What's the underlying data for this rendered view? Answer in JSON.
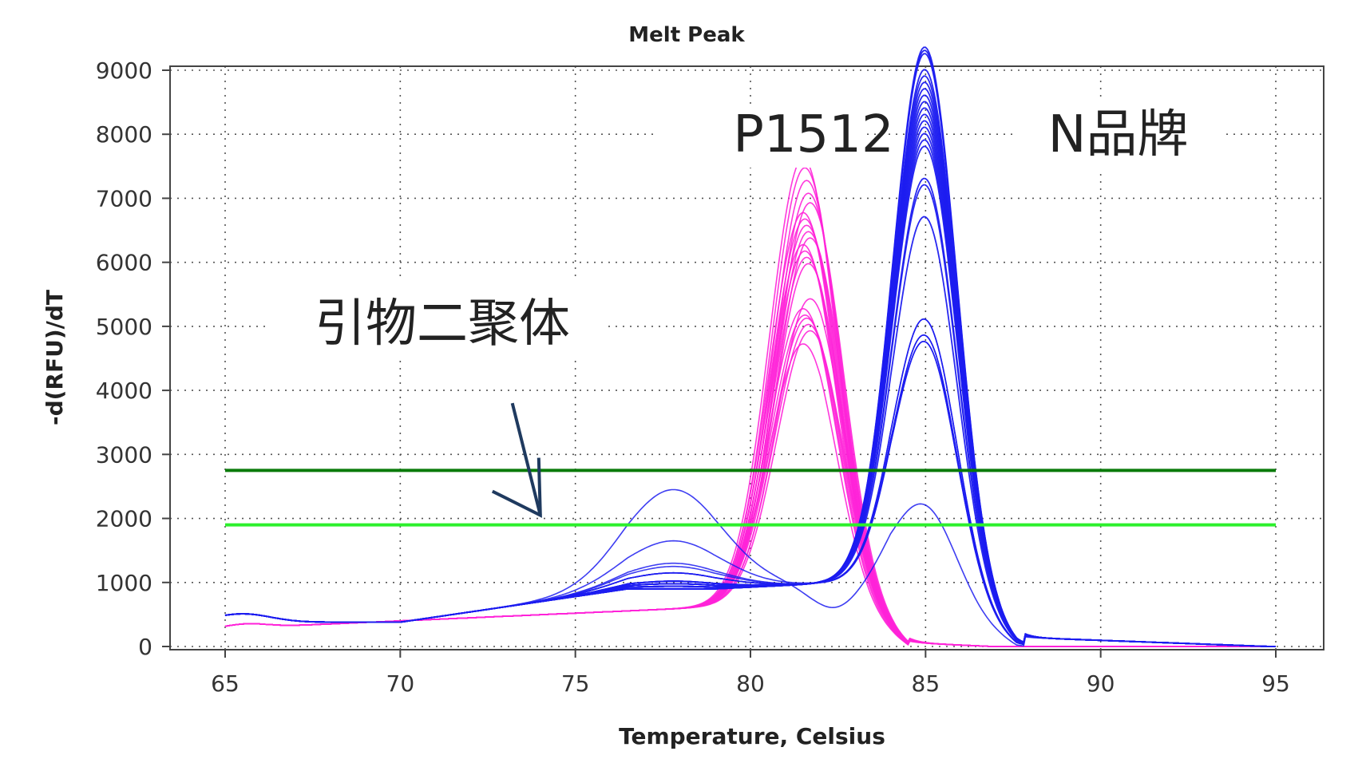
{
  "chart_data": {
    "type": "line",
    "title": "Melt Peak",
    "xlabel": "Temperature, Celsius",
    "ylabel": "-d(RFU)/dT",
    "xlim": [
      65,
      95
    ],
    "ylim": [
      0,
      9000
    ],
    "xticks": [
      65,
      70,
      75,
      80,
      85,
      90,
      95
    ],
    "yticks": [
      0,
      1000,
      2000,
      3000,
      4000,
      5000,
      6000,
      7000,
      8000,
      9000
    ],
    "grid": true,
    "colors": {
      "p1512": "#ff22d8",
      "n_brand": "#1c1cf0",
      "threshold_high": "#0a7a0a",
      "threshold_low": "#2cf02c",
      "arrow": "#1f3a5f"
    },
    "threshold_lines": [
      {
        "y": 2750,
        "color": "#0a7a0a"
      },
      {
        "y": 1900,
        "color": "#2cf02c"
      }
    ],
    "annotations": [
      {
        "text": "P1512",
        "x": 81.8,
        "y": 8000
      },
      {
        "text": "N品牌",
        "x": 90.5,
        "y": 8000
      },
      {
        "text": "引物二聚体",
        "x": 71.2,
        "y": 5050
      }
    ],
    "primer_dimer_arrow": {
      "from": [
        73.2,
        3800
      ],
      "to": [
        74.0,
        2050
      ]
    },
    "p1512_group": {
      "peak_temp": 81.5,
      "peak_heights": [
        6950,
        6800,
        6600,
        6400,
        6250,
        6100,
        6000,
        5900,
        5800,
        5700,
        5600,
        5500,
        5400,
        5300,
        4750,
        4600,
        4500,
        4450,
        4350,
        4250,
        4050
      ]
    },
    "n_brand_group": {
      "peak_temp": 85.0,
      "peak_heights": [
        8650,
        8600,
        8550,
        8300,
        8200,
        8100,
        8000,
        7900,
        7800,
        7700,
        7600,
        7500,
        7400,
        7300,
        7200,
        7100,
        6600,
        6500,
        6000
      ],
      "low_peak_heights": [
        4400,
        4150,
        4050
      ],
      "dimer_curve_hump_heights": [
        2450,
        1650,
        1300,
        1250
      ],
      "lowest_peak_height": 1500
    }
  }
}
